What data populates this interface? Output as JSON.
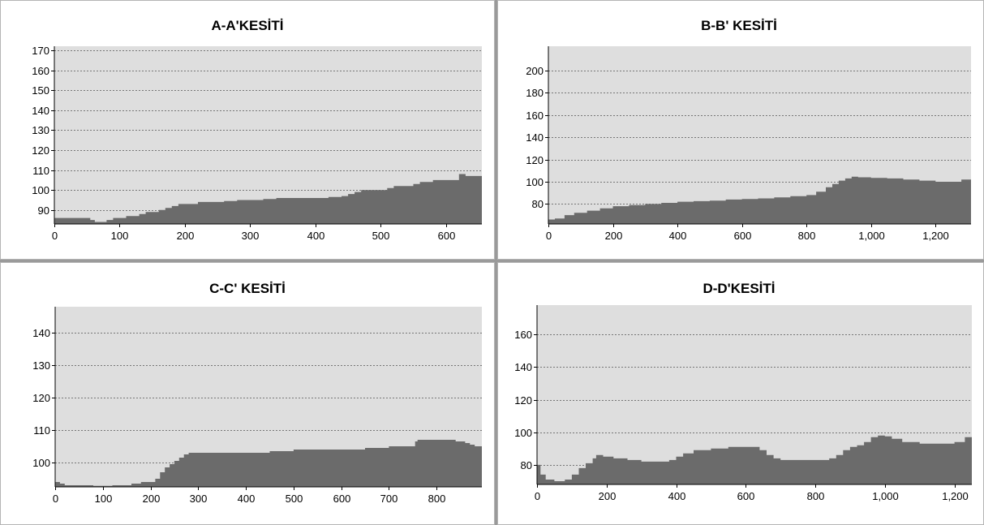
{
  "chart_data": [
    {
      "type": "area",
      "title": "A-A'KESİTİ",
      "xlabel": "",
      "ylabel": "",
      "xlim": [
        0,
        655
      ],
      "ylim": [
        83,
        172
      ],
      "xticks": [
        0,
        100,
        200,
        300,
        400,
        500,
        600
      ],
      "xtick_labels": [
        "0",
        "100",
        "200",
        "300",
        "400",
        "500",
        "600"
      ],
      "yticks": [
        90,
        100,
        110,
        120,
        130,
        140,
        150,
        160,
        170
      ],
      "ytick_labels": [
        "90",
        "100",
        "110",
        "120",
        "130",
        "140",
        "150",
        "160",
        "170"
      ],
      "grid": true,
      "legend": "none",
      "color": "#6b6b6b",
      "x": [
        0,
        10,
        20,
        40,
        55,
        62,
        70,
        80,
        90,
        100,
        110,
        120,
        130,
        140,
        150,
        160,
        170,
        180,
        190,
        200,
        220,
        240,
        260,
        280,
        300,
        320,
        340,
        360,
        380,
        400,
        420,
        440,
        450,
        460,
        470,
        480,
        490,
        500,
        510,
        520,
        530,
        540,
        550,
        560,
        570,
        580,
        590,
        600,
        610,
        620,
        630,
        640,
        655
      ],
      "y": [
        86,
        86,
        86,
        86,
        85,
        84,
        84,
        85,
        86,
        86,
        87,
        87,
        88,
        89,
        89,
        90,
        91,
        92,
        93,
        93,
        94,
        94,
        94.5,
        95,
        95,
        95.5,
        96,
        96,
        96,
        96,
        96.5,
        97,
        98,
        99,
        100,
        100,
        100,
        100,
        101,
        102,
        102,
        102,
        103,
        104,
        104,
        105,
        105,
        105,
        105,
        108,
        107,
        107,
        107
      ]
    },
    {
      "type": "area",
      "title": "B-B' KESİTİ",
      "xlabel": "",
      "ylabel": "",
      "xlim": [
        0,
        1310
      ],
      "ylim": [
        62,
        222
      ],
      "xticks": [
        0,
        200,
        400,
        600,
        800,
        1000,
        1200
      ],
      "xtick_labels": [
        "0",
        "200",
        "400",
        "600",
        "800",
        "1,000",
        "1,200"
      ],
      "yticks": [
        80,
        100,
        120,
        140,
        160,
        180,
        200
      ],
      "ytick_labels": [
        "80",
        "100",
        "120",
        "140",
        "160",
        "180",
        "200"
      ],
      "grid": true,
      "legend": "none",
      "color": "#6b6b6b",
      "x": [
        0,
        20,
        50,
        80,
        120,
        160,
        200,
        250,
        300,
        350,
        400,
        450,
        500,
        550,
        600,
        650,
        700,
        750,
        800,
        830,
        860,
        880,
        900,
        920,
        940,
        960,
        980,
        1000,
        1050,
        1100,
        1150,
        1200,
        1250,
        1280,
        1310
      ],
      "y": [
        66,
        67,
        70,
        72,
        74,
        76,
        78,
        79,
        80,
        81,
        82,
        82.5,
        83,
        84,
        84.5,
        85,
        86,
        87,
        88,
        91,
        95,
        98,
        101,
        103,
        104.5,
        104,
        104,
        103.5,
        103,
        102,
        101,
        100,
        100,
        102,
        104
      ]
    },
    {
      "type": "area",
      "title": "C-C' KESİTİ",
      "xlabel": "",
      "ylabel": "",
      "xlim": [
        0,
        895
      ],
      "ylim": [
        92.5,
        148
      ],
      "xticks": [
        0,
        100,
        200,
        300,
        400,
        500,
        600,
        700,
        800
      ],
      "xtick_labels": [
        "0",
        "100",
        "200",
        "300",
        "400",
        "500",
        "600",
        "700",
        "800"
      ],
      "yticks": [
        100,
        110,
        120,
        130,
        140
      ],
      "ytick_labels": [
        "100",
        "110",
        "120",
        "130",
        "140"
      ],
      "grid": true,
      "legend": "none",
      "color": "#6b6b6b",
      "x": [
        0,
        10,
        20,
        40,
        60,
        80,
        100,
        120,
        140,
        160,
        180,
        200,
        210,
        220,
        230,
        240,
        250,
        260,
        270,
        280,
        300,
        350,
        400,
        450,
        500,
        550,
        600,
        650,
        700,
        740,
        755,
        760,
        780,
        800,
        820,
        840,
        860,
        870,
        880,
        895
      ],
      "y": [
        94,
        93.5,
        93,
        93,
        93,
        92.8,
        92.8,
        93,
        93,
        93.5,
        94,
        94,
        95,
        97,
        98.5,
        99.5,
        100.5,
        101.5,
        102.5,
        103,
        103,
        103,
        103,
        103.5,
        104,
        104,
        104,
        104.5,
        105,
        105,
        106.5,
        107,
        107,
        107,
        107,
        106.5,
        106,
        105.5,
        105,
        104.5
      ]
    },
    {
      "type": "area",
      "title": "D-D'KESİTİ",
      "xlabel": "",
      "ylabel": "",
      "xlim": [
        0,
        1250
      ],
      "ylim": [
        68,
        178
      ],
      "xticks": [
        0,
        200,
        400,
        600,
        800,
        1000,
        1200
      ],
      "xtick_labels": [
        "0",
        "200",
        "400",
        "600",
        "800",
        "1,000",
        "1,200"
      ],
      "yticks": [
        80,
        100,
        120,
        140,
        160
      ],
      "ytick_labels": [
        "80",
        "100",
        "120",
        "140",
        "160"
      ],
      "grid": true,
      "legend": "none",
      "color": "#6b6b6b",
      "x": [
        0,
        10,
        25,
        50,
        80,
        100,
        120,
        140,
        160,
        170,
        190,
        220,
        260,
        300,
        340,
        380,
        400,
        420,
        450,
        500,
        550,
        600,
        640,
        660,
        680,
        700,
        740,
        800,
        840,
        860,
        880,
        900,
        920,
        940,
        960,
        980,
        1000,
        1020,
        1050,
        1100,
        1150,
        1200,
        1230,
        1250
      ],
      "y": [
        80,
        74,
        71,
        70,
        71,
        74,
        78,
        81,
        84,
        86,
        85,
        84,
        83,
        82,
        82,
        83,
        85,
        87,
        89,
        90,
        91,
        91,
        89,
        86,
        84,
        83,
        83,
        83,
        84,
        86,
        89,
        91,
        92,
        94,
        97,
        98,
        97.5,
        96,
        94,
        93,
        93,
        94,
        97,
        99
      ]
    }
  ]
}
